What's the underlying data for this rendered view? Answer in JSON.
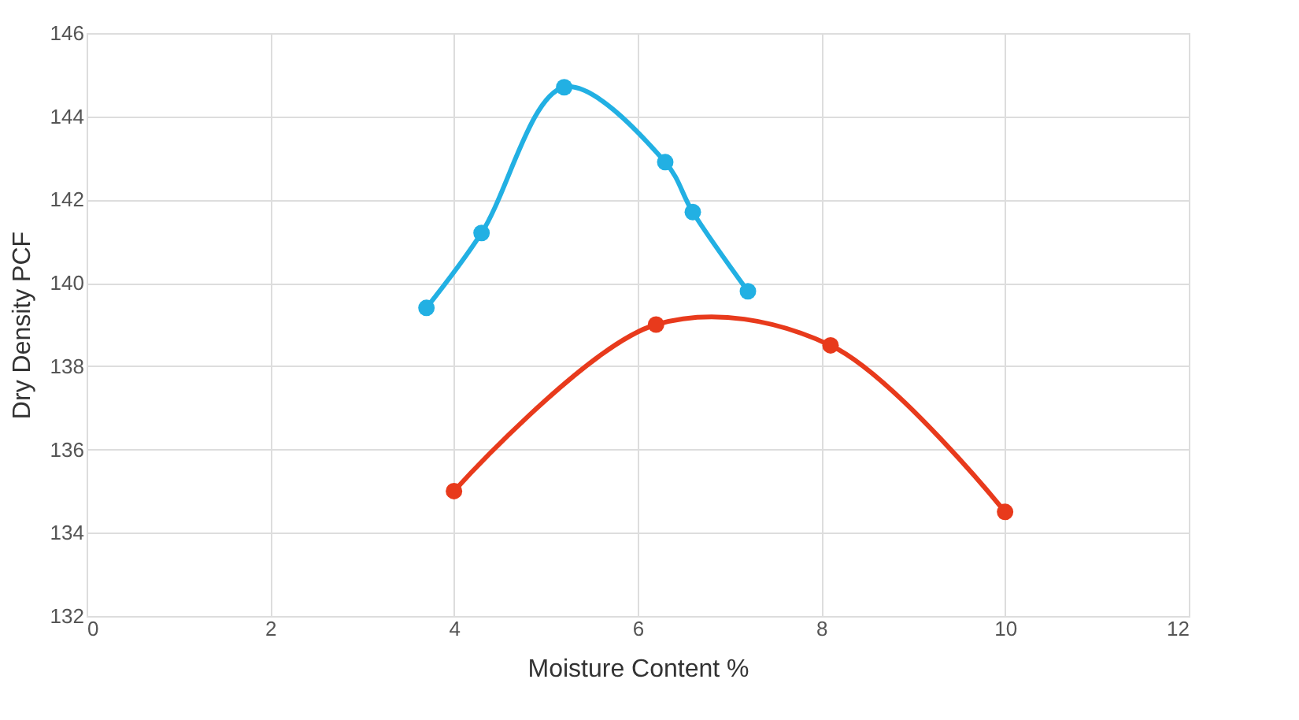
{
  "chart_data": {
    "type": "line",
    "xlabel": "Moisture Content %",
    "ylabel": "Dry Density PCF",
    "xlim": [
      0,
      12
    ],
    "xticks": [
      0,
      2,
      4,
      6,
      8,
      10,
      12
    ],
    "ylim": [
      132,
      146
    ],
    "yticks": [
      132,
      134,
      136,
      138,
      140,
      142,
      144,
      146
    ],
    "grid": true,
    "legend": false,
    "marker": "circle",
    "line_style": "solid",
    "series": [
      {
        "color": "#22b0e3",
        "x": [
          3.7,
          4.3,
          5.2,
          6.3,
          6.6,
          7.2
        ],
        "values": [
          139.4,
          141.2,
          144.7,
          142.9,
          141.7,
          139.8
        ]
      },
      {
        "color": "#e83a1c",
        "x": [
          4.0,
          6.2,
          8.1,
          10.0
        ],
        "values": [
          135.0,
          139.0,
          138.5,
          134.5
        ]
      }
    ]
  }
}
